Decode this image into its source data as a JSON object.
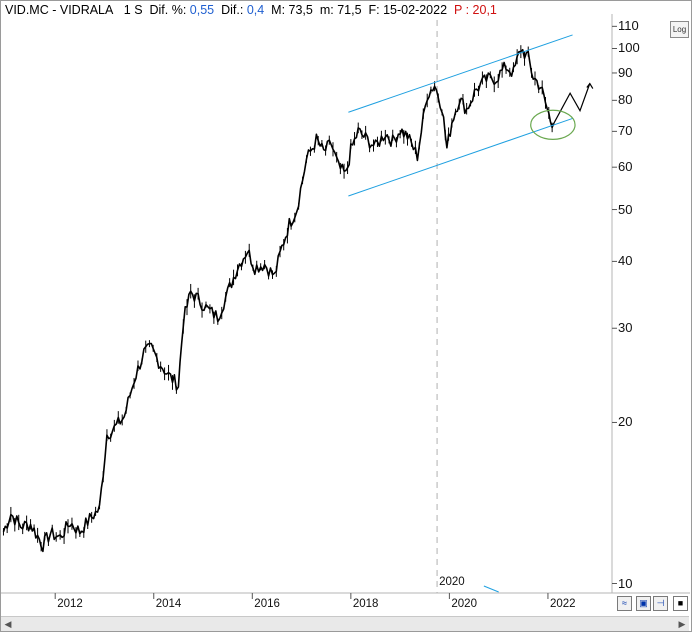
{
  "header": {
    "symbol": "VID.MC - VIDRALA",
    "period": "1 S",
    "dif_pct_label": "Dif. %:",
    "dif_pct_value": "0,55",
    "dif_label": "Dif.:",
    "dif_value": "0,4",
    "max_label": "M:",
    "max_value": "73,5",
    "min_label": "m:",
    "min_value": "71,5",
    "date_label": "F:",
    "date_value": "15-02-2022",
    "p_label": "P :",
    "p_value": "20,1"
  },
  "toolbar": {
    "log_label": "Log"
  },
  "colors": {
    "price": "#000000",
    "channel": "#1fa0e0",
    "ellipse": "#6aa84f",
    "blue_text": "#1f5fd0",
    "red_text": "#d01010"
  },
  "icons": [
    "zoom-icon",
    "save-icon",
    "pin-icon"
  ],
  "chart_data": {
    "type": "line",
    "title": "",
    "xlabel": "",
    "ylabel": "",
    "yscale": "log",
    "ylim": [
      9.6,
      116
    ],
    "xlim": [
      2010.9,
      2023.3
    ],
    "y_ticks": [
      "10",
      "20",
      "30",
      "40",
      "50",
      "60",
      "70",
      "80",
      "90",
      "100",
      "110"
    ],
    "x_ticks": [
      "2012",
      "2014",
      "2016",
      "2018",
      "2020",
      "2022"
    ],
    "x_marker_label": "2020",
    "x_marker": 2019.75,
    "series": [
      {
        "name": "",
        "kind": "price",
        "x": [
          2010.95,
          2011.1,
          2011.3,
          2011.5,
          2011.75,
          2011.9,
          2012.1,
          2012.3,
          2012.5,
          2012.7,
          2012.9,
          2013.05,
          2013.2,
          2013.4,
          2013.6,
          2013.8,
          2013.95,
          2014.1,
          2014.3,
          2014.5,
          2014.6,
          2014.75,
          2014.9,
          2015.1,
          2015.3,
          2015.5,
          2015.7,
          2015.9,
          2016.05,
          2016.25,
          2016.45,
          2016.6,
          2016.75,
          2016.9,
          2017.1,
          2017.3,
          2017.45,
          2017.6,
          2017.75,
          2017.9,
          2018.0,
          2018.15,
          2018.3,
          2018.5,
          2018.7,
          2018.85,
          2019.0,
          2019.15,
          2019.35,
          2019.55,
          2019.7,
          2019.85,
          2019.95,
          2020.05,
          2020.2,
          2020.35,
          2020.55,
          2020.75,
          2020.95,
          2021.15,
          2021.3,
          2021.45,
          2021.6,
          2021.7,
          2021.85,
          2021.95,
          2022.05,
          2022.12
        ],
        "y": [
          12.5,
          13.5,
          12.8,
          12.9,
          11.8,
          12.4,
          12.2,
          13.0,
          12.5,
          13.2,
          13.8,
          19.0,
          19.5,
          20.5,
          24.0,
          27.0,
          27.5,
          26.0,
          24.5,
          23.5,
          31.0,
          35.0,
          34.0,
          32.5,
          31.5,
          35.0,
          39.0,
          42.0,
          39.0,
          39.5,
          37.5,
          42.5,
          47.0,
          50.0,
          62.0,
          67.5,
          64.0,
          66.5,
          60.0,
          58.0,
          64.5,
          70.0,
          68.0,
          65.5,
          69.5,
          67.0,
          70.5,
          68.5,
          63.0,
          82.0,
          85.5,
          78.0,
          65.0,
          73.0,
          80.5,
          77.0,
          84.0,
          87.5,
          88.0,
          92.5,
          90.0,
          100.0,
          96.0,
          88.5,
          85.0,
          79.0,
          73.5,
          72.5
        ]
      },
      {
        "name": "",
        "kind": "projection",
        "x": [
          2022.12,
          2022.45,
          2022.65,
          2022.85
        ],
        "y": [
          72.5,
          82.5,
          76.5,
          86.0
        ]
      },
      {
        "name": "",
        "kind": "channel-upper",
        "x": [
          2017.95,
          2022.5
        ],
        "y": [
          76.0,
          106.0
        ]
      },
      {
        "name": "",
        "kind": "channel-lower",
        "x": [
          2017.95,
          2022.5
        ],
        "y": [
          53.0,
          74.0
        ]
      }
    ],
    "annotations": [
      {
        "kind": "ellipse",
        "x": 2022.1,
        "y": 72.0,
        "rx_years": 0.45,
        "ry_value_span": [
          67.5,
          76.5
        ]
      }
    ],
    "grid": false,
    "legend": "none"
  }
}
